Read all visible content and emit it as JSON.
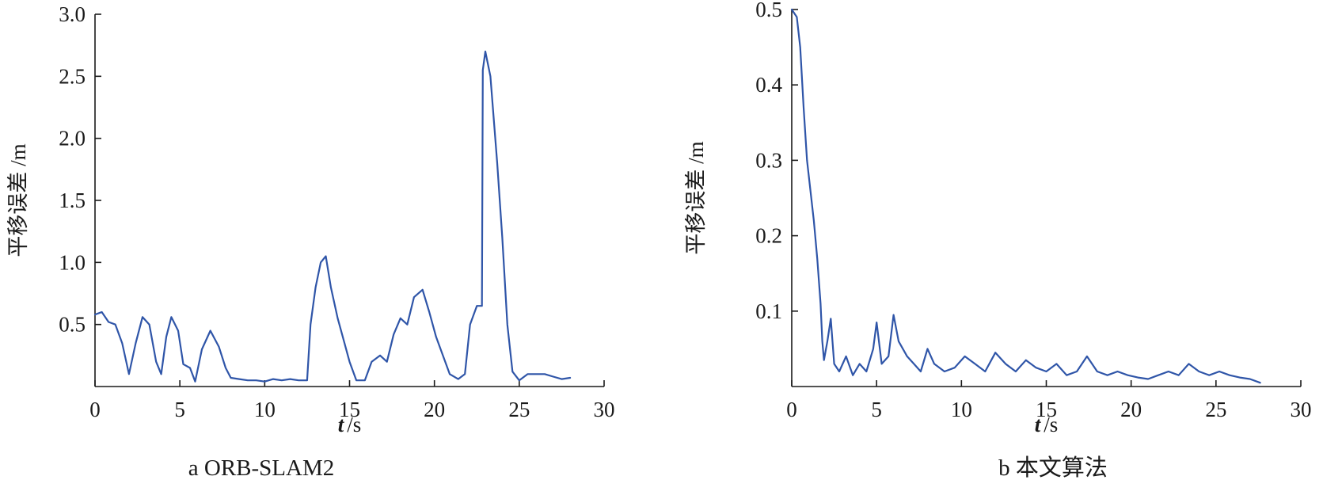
{
  "colors": {
    "series": "#2f55a8",
    "axis": "#1a1a1a"
  },
  "chart_data": [
    {
      "type": "line",
      "caption": "a ORB-SLAM2",
      "xlabel_var": "t",
      "xlabel_unit": "/s",
      "ylabel": "平移误差 /m",
      "xlim": [
        0,
        30
      ],
      "ylim": [
        0,
        3.0
      ],
      "xticks": [
        0,
        5,
        10,
        15,
        20,
        25,
        30
      ],
      "yticks": [
        0.5,
        1.0,
        1.5,
        2.0,
        2.5,
        3.0
      ],
      "ytick_labels": [
        "0.5",
        "1.0",
        "1.5",
        "2.0",
        "2.5",
        "3.0"
      ],
      "series": [
        {
          "color": "#2f55a8",
          "points": [
            [
              0,
              0.58
            ],
            [
              0.4,
              0.6
            ],
            [
              0.8,
              0.52
            ],
            [
              1.2,
              0.5
            ],
            [
              1.6,
              0.35
            ],
            [
              2.0,
              0.1
            ],
            [
              2.4,
              0.35
            ],
            [
              2.8,
              0.56
            ],
            [
              3.2,
              0.5
            ],
            [
              3.6,
              0.2
            ],
            [
              3.9,
              0.1
            ],
            [
              4.2,
              0.4
            ],
            [
              4.5,
              0.56
            ],
            [
              4.9,
              0.45
            ],
            [
              5.2,
              0.18
            ],
            [
              5.6,
              0.15
            ],
            [
              5.9,
              0.04
            ],
            [
              6.3,
              0.3
            ],
            [
              6.8,
              0.45
            ],
            [
              7.3,
              0.32
            ],
            [
              7.7,
              0.15
            ],
            [
              8.0,
              0.07
            ],
            [
              8.5,
              0.06
            ],
            [
              9.0,
              0.05
            ],
            [
              9.5,
              0.05
            ],
            [
              10.0,
              0.04
            ],
            [
              10.5,
              0.06
            ],
            [
              11.0,
              0.05
            ],
            [
              11.5,
              0.06
            ],
            [
              12.0,
              0.05
            ],
            [
              12.5,
              0.05
            ],
            [
              12.7,
              0.5
            ],
            [
              13.0,
              0.8
            ],
            [
              13.3,
              1.0
            ],
            [
              13.6,
              1.05
            ],
            [
              13.9,
              0.8
            ],
            [
              14.3,
              0.55
            ],
            [
              14.7,
              0.35
            ],
            [
              15.0,
              0.2
            ],
            [
              15.4,
              0.05
            ],
            [
              15.9,
              0.05
            ],
            [
              16.3,
              0.2
            ],
            [
              16.8,
              0.25
            ],
            [
              17.2,
              0.2
            ],
            [
              17.6,
              0.42
            ],
            [
              18.0,
              0.55
            ],
            [
              18.4,
              0.5
            ],
            [
              18.8,
              0.72
            ],
            [
              19.3,
              0.78
            ],
            [
              19.7,
              0.6
            ],
            [
              20.1,
              0.4
            ],
            [
              20.5,
              0.25
            ],
            [
              20.9,
              0.1
            ],
            [
              21.4,
              0.06
            ],
            [
              21.8,
              0.1
            ],
            [
              22.1,
              0.5
            ],
            [
              22.5,
              0.65
            ],
            [
              22.8,
              0.65
            ],
            [
              22.85,
              2.55
            ],
            [
              23.0,
              2.7
            ],
            [
              23.3,
              2.5
            ],
            [
              23.7,
              1.8
            ],
            [
              24.0,
              1.2
            ],
            [
              24.3,
              0.5
            ],
            [
              24.6,
              0.12
            ],
            [
              25.0,
              0.05
            ],
            [
              25.5,
              0.1
            ],
            [
              26.0,
              0.1
            ],
            [
              26.5,
              0.1
            ],
            [
              27.0,
              0.08
            ],
            [
              27.5,
              0.06
            ],
            [
              28.0,
              0.07
            ]
          ]
        }
      ]
    },
    {
      "type": "line",
      "caption": "b 本文算法",
      "xlabel_var": "t",
      "xlabel_unit": "/s",
      "ylabel": "平移误差 /m",
      "xlim": [
        0,
        30
      ],
      "ylim": [
        0,
        0.5
      ],
      "xticks": [
        0,
        5,
        10,
        15,
        20,
        25,
        30
      ],
      "yticks": [
        0.1,
        0.2,
        0.3,
        0.4,
        0.5
      ],
      "ytick_labels": [
        "0.1",
        "0.2",
        "0.3",
        "0.4",
        "0.5"
      ],
      "series": [
        {
          "color": "#2f55a8",
          "points": [
            [
              0,
              0.5
            ],
            [
              0.3,
              0.49
            ],
            [
              0.5,
              0.45
            ],
            [
              0.7,
              0.37
            ],
            [
              0.9,
              0.3
            ],
            [
              1.1,
              0.26
            ],
            [
              1.3,
              0.22
            ],
            [
              1.5,
              0.17
            ],
            [
              1.7,
              0.11
            ],
            [
              1.8,
              0.06
            ],
            [
              1.9,
              0.035
            ],
            [
              2.1,
              0.06
            ],
            [
              2.3,
              0.09
            ],
            [
              2.5,
              0.03
            ],
            [
              2.8,
              0.02
            ],
            [
              3.2,
              0.04
            ],
            [
              3.6,
              0.015
            ],
            [
              4.0,
              0.03
            ],
            [
              4.4,
              0.02
            ],
            [
              4.8,
              0.05
            ],
            [
              5.0,
              0.085
            ],
            [
              5.3,
              0.03
            ],
            [
              5.7,
              0.04
            ],
            [
              6.0,
              0.095
            ],
            [
              6.3,
              0.06
            ],
            [
              6.8,
              0.04
            ],
            [
              7.2,
              0.03
            ],
            [
              7.6,
              0.02
            ],
            [
              8.0,
              0.05
            ],
            [
              8.4,
              0.03
            ],
            [
              9.0,
              0.02
            ],
            [
              9.6,
              0.025
            ],
            [
              10.2,
              0.04
            ],
            [
              10.8,
              0.03
            ],
            [
              11.4,
              0.02
            ],
            [
              12.0,
              0.045
            ],
            [
              12.6,
              0.03
            ],
            [
              13.2,
              0.02
            ],
            [
              13.8,
              0.035
            ],
            [
              14.4,
              0.025
            ],
            [
              15.0,
              0.02
            ],
            [
              15.6,
              0.03
            ],
            [
              16.2,
              0.015
            ],
            [
              16.8,
              0.02
            ],
            [
              17.4,
              0.04
            ],
            [
              18.0,
              0.02
            ],
            [
              18.6,
              0.015
            ],
            [
              19.2,
              0.02
            ],
            [
              19.8,
              0.015
            ],
            [
              20.4,
              0.012
            ],
            [
              21.0,
              0.01
            ],
            [
              21.6,
              0.015
            ],
            [
              22.2,
              0.02
            ],
            [
              22.8,
              0.015
            ],
            [
              23.4,
              0.03
            ],
            [
              24.0,
              0.02
            ],
            [
              24.6,
              0.015
            ],
            [
              25.2,
              0.02
            ],
            [
              25.8,
              0.015
            ],
            [
              26.4,
              0.012
            ],
            [
              27.0,
              0.01
            ],
            [
              27.6,
              0.005
            ]
          ]
        }
      ]
    }
  ]
}
